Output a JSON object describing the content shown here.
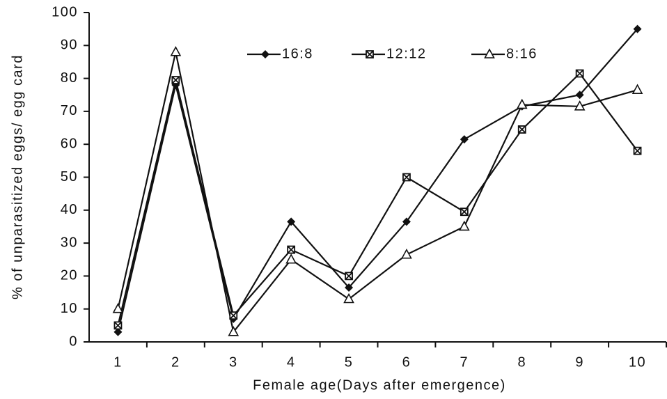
{
  "chart_data": {
    "type": "line",
    "xlabel": "Female age(Days after emergence)",
    "ylabel": "% of unparasitized eggs/ egg card",
    "categories": [
      "1",
      "2",
      "3",
      "4",
      "5",
      "6",
      "7",
      "8",
      "9",
      "10"
    ],
    "series": [
      {
        "name": "16:8",
        "color": "#111111",
        "marker": "diamond",
        "values": [
          3,
          78,
          7,
          36.5,
          16.5,
          36.5,
          61.5,
          71.5,
          75,
          95
        ]
      },
      {
        "name": "12:12",
        "color": "#111111",
        "marker": "square",
        "values": [
          5,
          79.5,
          8,
          28,
          20,
          50,
          39.5,
          64.5,
          81.5,
          58
        ]
      },
      {
        "name": "8:16",
        "color": "#111111",
        "marker": "triangle",
        "values": [
          10,
          88,
          3,
          25,
          13,
          26.5,
          35,
          72,
          71.5,
          76.5
        ]
      }
    ],
    "ylim": [
      0,
      100
    ],
    "yticks": [
      0,
      10,
      20,
      30,
      40,
      50,
      60,
      70,
      80,
      90,
      100
    ],
    "grid": false
  }
}
